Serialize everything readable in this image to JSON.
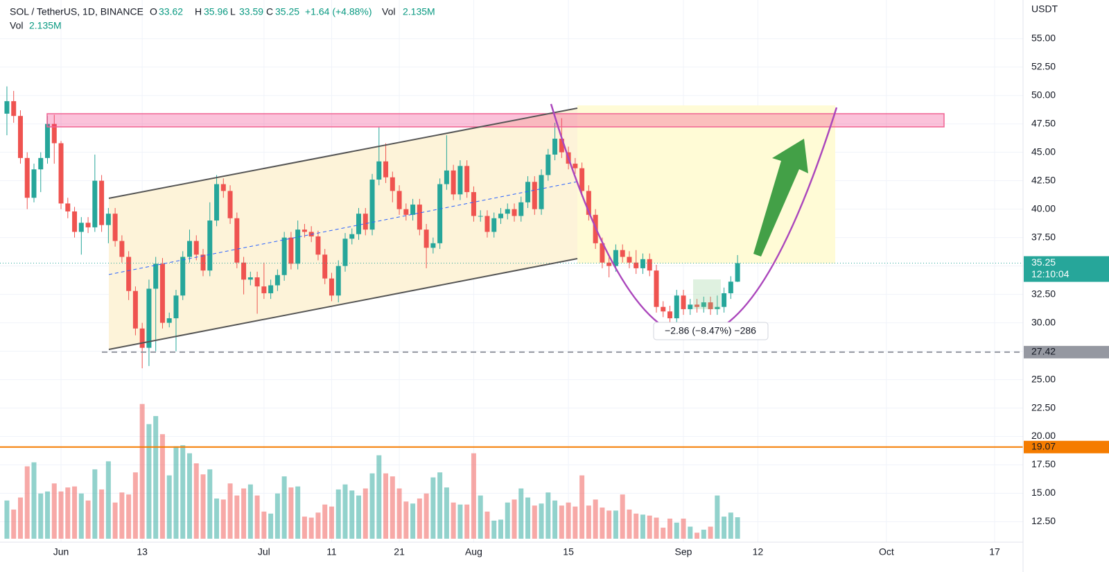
{
  "header": {
    "symbol": "SOL / TetherUS, 1D, BINANCE",
    "open_label": "O",
    "high_label": "H",
    "low_label": "L",
    "close_label": "C",
    "change": "+1.64 (+4.88%)",
    "vol_label": "Vol",
    "vol_value": "2.135M"
  },
  "chart_data": {
    "type": "candlestick",
    "open": [
      48.4,
      49.5,
      48.2,
      44.5,
      41.0,
      43.5,
      44.5,
      47.5,
      45.8,
      40.5,
      39.8,
      38.0,
      38.8,
      38.4,
      42.5,
      38.6,
      39.6,
      37.2,
      35.8,
      32.8,
      29.5,
      27.8,
      33.0,
      35.2,
      30.0,
      30.4,
      32.4,
      35.8,
      37.2,
      36.0,
      34.6,
      39.0,
      42.2,
      41.6,
      39.2,
      35.3,
      33.8,
      34.0,
      33.2,
      32.6,
      33.3,
      34.2,
      37.5,
      35.2,
      38.2,
      38.0,
      37.6,
      36.0,
      33.9,
      32.4,
      35.0,
      37.4,
      37.8,
      39.6,
      38.2,
      42.6,
      44.2,
      42.8,
      41.6,
      40.0,
      39.5,
      40.4,
      38.2,
      36.6,
      37.0,
      42.2,
      43.4,
      41.3,
      43.8,
      41.5,
      39.4,
      39.4,
      38.0,
      39.2,
      39.6,
      40.0,
      39.4,
      40.6,
      42.4,
      40.0,
      43.0,
      44.8,
      46.2,
      45.0,
      44.0,
      43.6,
      41.6,
      39.5,
      37.0,
      35.3,
      35.0,
      36.4,
      35.8,
      35.3,
      34.8,
      35.6,
      34.6,
      31.4,
      31.0,
      30.4,
      32.4,
      31.2,
      31.6,
      31.4,
      31.8,
      31.2,
      31.4,
      32.6,
      33.62
    ],
    "high": [
      50.8,
      50.4,
      48.7,
      45.0,
      44.0,
      45.0,
      48.2,
      48.3,
      46.0,
      41.0,
      40.2,
      39.3,
      39.3,
      44.8,
      43.0,
      40.1,
      40.1,
      37.7,
      36.3,
      33.2,
      30.0,
      33.8,
      35.8,
      35.7,
      30.9,
      32.9,
      36.3,
      38.2,
      37.7,
      36.5,
      40.6,
      43.0,
      42.7,
      42.1,
      39.7,
      35.8,
      34.5,
      34.5,
      35.3,
      33.8,
      34.7,
      38.0,
      38.0,
      39.0,
      38.7,
      38.5,
      38.1,
      36.5,
      34.4,
      35.5,
      37.9,
      38.3,
      40.1,
      40.1,
      43.1,
      47.2,
      45.8,
      43.3,
      42.1,
      40.5,
      40.9,
      40.9,
      38.7,
      37.5,
      42.7,
      46.5,
      43.9,
      44.3,
      44.3,
      42.0,
      39.9,
      39.9,
      39.7,
      40.1,
      40.5,
      40.5,
      41.1,
      42.9,
      42.9,
      43.5,
      45.3,
      47.6,
      48.0,
      45.5,
      44.5,
      44.1,
      42.1,
      40.0,
      37.5,
      35.8,
      36.9,
      36.9,
      36.3,
      36.4,
      36.1,
      36.1,
      35.1,
      31.9,
      31.5,
      32.9,
      32.9,
      32.1,
      32.1,
      32.3,
      32.3,
      32.4,
      33.1,
      34.1,
      35.96
    ],
    "low": [
      46.5,
      47.6,
      44.0,
      40.0,
      40.6,
      41.5,
      44.0,
      44.0,
      40.0,
      39.2,
      37.5,
      36.0,
      37.9,
      38.0,
      38.0,
      37.0,
      36.7,
      35.3,
      32.0,
      28.9,
      26.0,
      26.2,
      27.5,
      29.5,
      29.6,
      27.5,
      32.0,
      35.3,
      35.5,
      34.1,
      34.1,
      38.5,
      41.0,
      38.7,
      34.8,
      32.5,
      33.3,
      30.8,
      32.1,
      32.1,
      32.8,
      33.7,
      34.7,
      34.7,
      37.5,
      37.1,
      35.5,
      33.4,
      31.9,
      31.8,
      34.5,
      36.9,
      37.3,
      37.7,
      37.7,
      42.1,
      42.3,
      40.6,
      39.5,
      39.0,
      39.0,
      37.7,
      34.8,
      36.1,
      36.5,
      41.7,
      40.8,
      40.8,
      41.0,
      38.9,
      38.9,
      37.5,
      37.5,
      38.7,
      39.1,
      38.9,
      38.9,
      40.1,
      39.5,
      39.5,
      42.5,
      44.3,
      44.5,
      43.5,
      43.1,
      41.1,
      39.0,
      36.5,
      34.8,
      34.0,
      34.5,
      35.3,
      34.8,
      34.3,
      34.3,
      34.1,
      30.9,
      30.5,
      29.9,
      29.9,
      30.7,
      30.7,
      30.9,
      30.9,
      30.7,
      30.7,
      30.9,
      32.1,
      33.59
    ],
    "close": [
      49.5,
      48.2,
      44.5,
      41.0,
      43.5,
      44.5,
      47.5,
      45.8,
      40.5,
      39.8,
      38.0,
      38.8,
      38.4,
      42.5,
      38.6,
      39.6,
      37.2,
      35.8,
      32.8,
      29.5,
      27.8,
      33.0,
      35.2,
      30.0,
      30.4,
      32.4,
      35.8,
      37.2,
      36.0,
      34.6,
      39.0,
      42.2,
      41.6,
      39.2,
      35.3,
      33.8,
      34.0,
      33.2,
      32.6,
      33.3,
      34.2,
      37.5,
      35.2,
      38.2,
      38.0,
      37.6,
      36.0,
      33.9,
      32.4,
      35.0,
      37.4,
      37.8,
      39.6,
      38.2,
      42.6,
      44.2,
      42.8,
      41.6,
      40.0,
      39.5,
      40.4,
      38.2,
      36.6,
      37.0,
      42.2,
      43.4,
      41.3,
      43.8,
      41.5,
      39.4,
      39.4,
      38.0,
      39.2,
      39.6,
      40.0,
      39.4,
      40.6,
      42.4,
      40.0,
      43.0,
      44.8,
      46.2,
      45.0,
      44.0,
      43.6,
      41.6,
      39.5,
      37.0,
      35.3,
      35.0,
      36.4,
      35.8,
      35.3,
      34.8,
      35.6,
      34.6,
      31.4,
      31.0,
      30.4,
      32.4,
      31.2,
      31.6,
      31.4,
      31.8,
      31.2,
      31.4,
      32.6,
      33.62,
      35.25
    ],
    "volume": [
      3.8,
      2.9,
      4.1,
      7.2,
      7.6,
      4.5,
      4.7,
      5.5,
      4.7,
      5.1,
      5.2,
      4.5,
      3.8,
      6.9,
      4.9,
      7.7,
      3.6,
      4.6,
      4.4,
      6.6,
      13.4,
      11.4,
      12.2,
      10.4,
      6.3,
      9.2,
      9.3,
      8.5,
      7.5,
      6.4,
      6.9,
      4.0,
      3.9,
      5.5,
      4.3,
      5.0,
      5.4,
      4.3,
      2.7,
      2.5,
      4.5,
      6.2,
      5.1,
      5.2,
      2.2,
      2.1,
      2.6,
      3.4,
      3.2,
      4.9,
      5.4,
      4.8,
      4.3,
      5.0,
      6.5,
      8.3,
      6.5,
      6.2,
      5.0,
      3.7,
      3.5,
      4.0,
      4.5,
      6.1,
      6.6,
      5.1,
      3.6,
      3.4,
      3.4,
      8.5,
      4.3,
      2.7,
      1.8,
      1.9,
      3.6,
      3.9,
      5.0,
      4.1,
      3.3,
      3.5,
      4.6,
      3.8,
      3.3,
      3.6,
      3.2,
      6.3,
      3.3,
      3.9,
      3.1,
      2.8,
      2.8,
      4.4,
      2.9,
      2.5,
      2.4,
      2.3,
      2.1,
      1.1,
      2.0,
      1.6,
      2.0,
      1.2,
      0.6,
      0.9,
      1.2,
      4.3,
      2.2,
      2.6,
      2.135
    ],
    "colors": {
      "up": "#26a69a",
      "down": "#ef5350"
    },
    "xlim": [
      -1.02,
      150.2
    ],
    "xticks": [
      {
        "value": 8,
        "label": "Jun"
      },
      {
        "value": 20,
        "label": "13"
      },
      {
        "value": 38,
        "label": "Jul"
      },
      {
        "value": 48,
        "label": "11"
      },
      {
        "value": 58,
        "label": "21"
      },
      {
        "value": 69,
        "label": "Aug"
      },
      {
        "value": 83,
        "label": "15"
      },
      {
        "value": 100,
        "label": "Sep"
      },
      {
        "value": 111,
        "label": "12"
      },
      {
        "value": 130,
        "label": "Oct"
      },
      {
        "value": 146,
        "label": "17"
      }
    ],
    "ylim": [
      10.7,
      58.4
    ],
    "yticks": [
      {
        "value": 12.5,
        "label": "12.50"
      },
      {
        "value": 15,
        "label": "15.00"
      },
      {
        "value": 17.5,
        "label": "17.50"
      },
      {
        "value": 20,
        "label": "20.00"
      },
      {
        "value": 22.5,
        "label": "22.50"
      },
      {
        "value": 25,
        "label": "25.00"
      },
      {
        "value": 27.5,
        "label": "27.50"
      },
      {
        "value": 30,
        "label": "30.00"
      },
      {
        "value": 32.5,
        "label": "32.50"
      },
      {
        "value": 35,
        "label": "35.00"
      },
      {
        "value": 37.5,
        "label": "37.50"
      },
      {
        "value": 40,
        "label": "40.00"
      },
      {
        "value": 42.5,
        "label": "42.50"
      },
      {
        "value": 45,
        "label": "45.00"
      },
      {
        "value": 47.5,
        "label": "47.50"
      },
      {
        "value": 50,
        "label": "50.00"
      },
      {
        "value": 52.5,
        "label": "52.50"
      },
      {
        "value": 55,
        "label": "55.00"
      }
    ],
    "grid": true,
    "y_axis_unit": "USDT",
    "countdown": "12:10:04",
    "horizontal_lines": [
      {
        "value": 27.42,
        "color": "#9598a1",
        "style": "dashed"
      },
      {
        "value": 19.07,
        "color": "#f57c00",
        "style": "solid"
      }
    ],
    "annotation": "−2.86 (−8.47%) −286"
  }
}
